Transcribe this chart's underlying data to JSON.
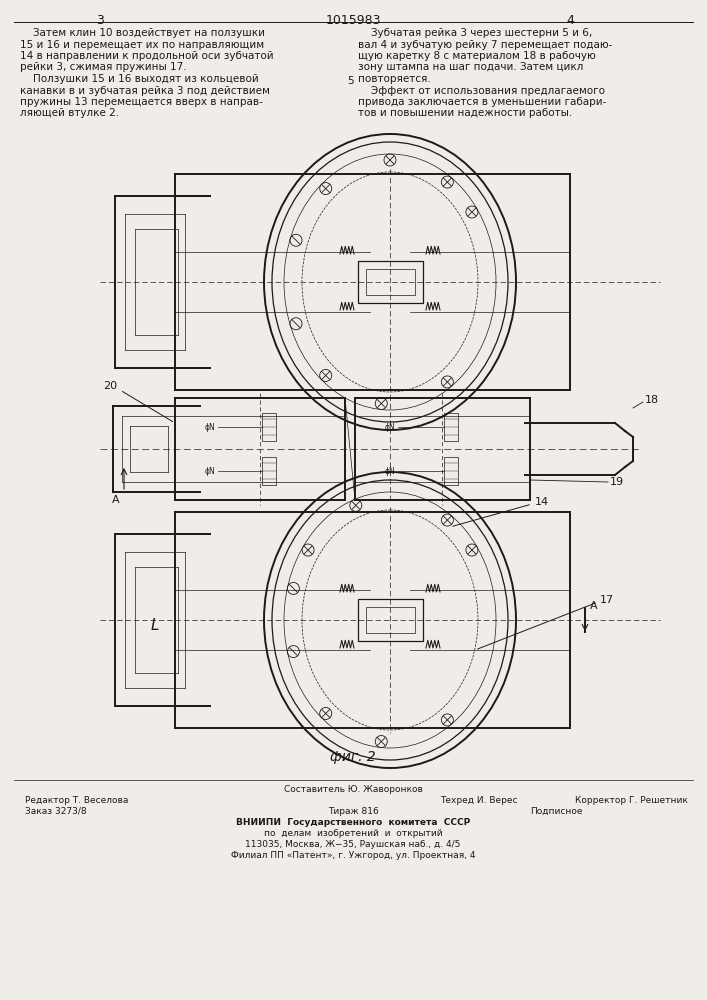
{
  "bg_color": "#f0ede8",
  "line_color": "#1a1a1a",
  "page_width": 7.07,
  "page_height": 10.0,
  "header_patent_num": "1015983",
  "header_left_col": "3",
  "header_right_col": "4",
  "text_left": [
    "    Затем клин 10 воздействует на ползушки",
    "15 и 16 и перемещает их по направляющим",
    "14 в направлении к продольной оси зубчатой",
    "рейки 3, сжимая пружины 17.",
    "    Ползушки 15 и 16 выходят из кольцевой",
    "канавки в и зубчатая рейка 3 под действием",
    "пружины 13 перемещается вверх в направ-",
    "ляющей втулке 2."
  ],
  "text_right": [
    "    Зубчатая рейка 3 через шестерни 5 и 6,",
    "вал 4 и зубчатую рейку 7 перемещает подаю-",
    "щую каретку 8 с материалом 18 в рабочую",
    "зону штампа на шаг подачи. Затем цикл",
    "повторяется.",
    "    Эффект от использования предлагаемого",
    "привода заключается в уменьшении габари-",
    "тов и повышении надежности работы."
  ],
  "col_5_label": "5",
  "fig_label": "фиг. 2"
}
